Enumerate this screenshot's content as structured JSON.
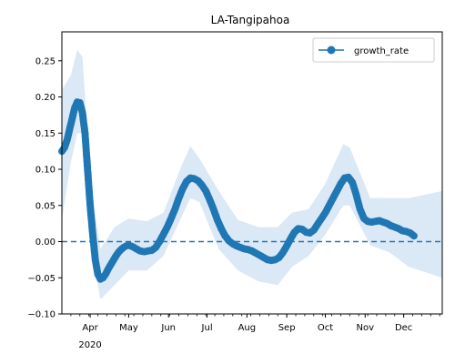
{
  "chart_data": {
    "type": "line",
    "title": "LA-Tangipahoa",
    "xlabel": "",
    "ylabel": "",
    "date_range": [
      "2020-03-10",
      "2020-12-31"
    ],
    "ylim": [
      -0.1,
      0.29
    ],
    "y_ticks": [
      -0.1,
      -0.05,
      0.0,
      0.05,
      0.1,
      0.15,
      0.2,
      0.25
    ],
    "y_tick_labels": [
      "−0.10",
      "−0.05",
      "0.00",
      "0.05",
      "0.10",
      "0.15",
      "0.20",
      "0.25"
    ],
    "x_ticks": [
      "2020-04-01",
      "2020-05-01",
      "2020-06-01",
      "2020-07-01",
      "2020-08-01",
      "2020-09-01",
      "2020-10-01",
      "2020-11-01",
      "2020-12-01"
    ],
    "x_tick_labels": [
      "Apr",
      "May",
      "Jun",
      "Jul",
      "Aug",
      "Sep",
      "Oct",
      "Nov",
      "Dec"
    ],
    "x_year_label": "2020",
    "reference_line": {
      "y": 0.0,
      "style": "dashed"
    },
    "legend": {
      "position": "top-right",
      "entries": [
        "growth_rate"
      ]
    },
    "colors": {
      "line": "#1f77b4",
      "band": "#dbe8f5",
      "reference": "#1f77b4"
    },
    "series": [
      {
        "name": "growth_rate",
        "points": [
          [
            "2020-03-10",
            0.125
          ],
          [
            "2020-03-12",
            0.13
          ],
          [
            "2020-03-14",
            0.14
          ],
          [
            "2020-03-16",
            0.155
          ],
          [
            "2020-03-18",
            0.17
          ],
          [
            "2020-03-20",
            0.185
          ],
          [
            "2020-03-22",
            0.193
          ],
          [
            "2020-03-24",
            0.192
          ],
          [
            "2020-03-26",
            0.178
          ],
          [
            "2020-03-28",
            0.15
          ],
          [
            "2020-03-30",
            0.1
          ],
          [
            "2020-04-01",
            0.05
          ],
          [
            "2020-04-03",
            0.01
          ],
          [
            "2020-04-05",
            -0.025
          ],
          [
            "2020-04-07",
            -0.045
          ],
          [
            "2020-04-09",
            -0.052
          ],
          [
            "2020-04-11",
            -0.05
          ],
          [
            "2020-04-13",
            -0.045
          ],
          [
            "2020-04-15",
            -0.038
          ],
          [
            "2020-04-17",
            -0.032
          ],
          [
            "2020-04-19",
            -0.026
          ],
          [
            "2020-04-21",
            -0.02
          ],
          [
            "2020-04-23",
            -0.015
          ],
          [
            "2020-04-25",
            -0.011
          ],
          [
            "2020-04-27",
            -0.008
          ],
          [
            "2020-04-29",
            -0.006
          ],
          [
            "2020-05-01",
            -0.005
          ],
          [
            "2020-05-04",
            -0.007
          ],
          [
            "2020-05-07",
            -0.01
          ],
          [
            "2020-05-10",
            -0.013
          ],
          [
            "2020-05-13",
            -0.014
          ],
          [
            "2020-05-16",
            -0.013
          ],
          [
            "2020-05-19",
            -0.012
          ],
          [
            "2020-05-22",
            -0.008
          ],
          [
            "2020-05-25",
            0.0
          ],
          [
            "2020-05-28",
            0.01
          ],
          [
            "2020-05-31",
            0.02
          ],
          [
            "2020-06-03",
            0.032
          ],
          [
            "2020-06-06",
            0.045
          ],
          [
            "2020-06-09",
            0.06
          ],
          [
            "2020-06-12",
            0.073
          ],
          [
            "2020-06-15",
            0.083
          ],
          [
            "2020-06-18",
            0.088
          ],
          [
            "2020-06-21",
            0.087
          ],
          [
            "2020-06-24",
            0.084
          ],
          [
            "2020-06-27",
            0.078
          ],
          [
            "2020-06-30",
            0.07
          ],
          [
            "2020-07-03",
            0.058
          ],
          [
            "2020-07-06",
            0.045
          ],
          [
            "2020-07-09",
            0.03
          ],
          [
            "2020-07-12",
            0.018
          ],
          [
            "2020-07-15",
            0.008
          ],
          [
            "2020-07-18",
            0.001
          ],
          [
            "2020-07-21",
            -0.003
          ],
          [
            "2020-07-24",
            -0.006
          ],
          [
            "2020-07-27",
            -0.008
          ],
          [
            "2020-07-30",
            -0.01
          ],
          [
            "2020-08-02",
            -0.011
          ],
          [
            "2020-08-05",
            -0.013
          ],
          [
            "2020-08-08",
            -0.016
          ],
          [
            "2020-08-11",
            -0.019
          ],
          [
            "2020-08-14",
            -0.022
          ],
          [
            "2020-08-17",
            -0.025
          ],
          [
            "2020-08-20",
            -0.026
          ],
          [
            "2020-08-23",
            -0.025
          ],
          [
            "2020-08-26",
            -0.022
          ],
          [
            "2020-08-29",
            -0.015
          ],
          [
            "2020-09-01",
            -0.006
          ],
          [
            "2020-09-04",
            0.004
          ],
          [
            "2020-09-07",
            0.013
          ],
          [
            "2020-09-10",
            0.018
          ],
          [
            "2020-09-13",
            0.017
          ],
          [
            "2020-09-16",
            0.013
          ],
          [
            "2020-09-19",
            0.012
          ],
          [
            "2020-09-22",
            0.016
          ],
          [
            "2020-09-25",
            0.024
          ],
          [
            "2020-09-28",
            0.032
          ],
          [
            "2020-10-01",
            0.04
          ],
          [
            "2020-10-04",
            0.05
          ],
          [
            "2020-10-07",
            0.06
          ],
          [
            "2020-10-10",
            0.07
          ],
          [
            "2020-10-13",
            0.08
          ],
          [
            "2020-10-16",
            0.088
          ],
          [
            "2020-10-19",
            0.089
          ],
          [
            "2020-10-22",
            0.082
          ],
          [
            "2020-10-25",
            0.065
          ],
          [
            "2020-10-28",
            0.045
          ],
          [
            "2020-10-31",
            0.032
          ],
          [
            "2020-11-03",
            0.028
          ],
          [
            "2020-11-06",
            0.027
          ],
          [
            "2020-11-09",
            0.028
          ],
          [
            "2020-11-12",
            0.029
          ],
          [
            "2020-11-15",
            0.027
          ],
          [
            "2020-11-18",
            0.025
          ],
          [
            "2020-11-21",
            0.022
          ],
          [
            "2020-11-24",
            0.02
          ],
          [
            "2020-11-27",
            0.018
          ],
          [
            "2020-11-30",
            0.015
          ],
          [
            "2020-12-03",
            0.014
          ],
          [
            "2020-12-06",
            0.012
          ],
          [
            "2020-12-09",
            0.008
          ]
        ],
        "band": {
          "points": [
            [
              "2020-03-10",
              0.03,
              0.21
            ],
            [
              "2020-03-17",
              0.11,
              0.23
            ],
            [
              "2020-03-22",
              0.15,
              0.265
            ],
            [
              "2020-03-26",
              0.15,
              0.255
            ],
            [
              "2020-03-30",
              0.08,
              0.15
            ],
            [
              "2020-04-03",
              -0.02,
              0.06
            ],
            [
              "2020-04-09",
              -0.08,
              -0.01
            ],
            [
              "2020-04-20",
              -0.06,
              0.02
            ],
            [
              "2020-05-01",
              -0.04,
              0.032
            ],
            [
              "2020-05-15",
              -0.04,
              0.028
            ],
            [
              "2020-05-28",
              -0.02,
              0.04
            ],
            [
              "2020-06-10",
              0.03,
              0.1
            ],
            [
              "2020-06-18",
              0.06,
              0.132
            ],
            [
              "2020-06-25",
              0.055,
              0.115
            ],
            [
              "2020-07-10",
              -0.01,
              0.07
            ],
            [
              "2020-07-25",
              -0.04,
              0.03
            ],
            [
              "2020-08-10",
              -0.055,
              0.02
            ],
            [
              "2020-08-25",
              -0.06,
              0.02
            ],
            [
              "2020-09-05",
              -0.035,
              0.04
            ],
            [
              "2020-09-18",
              -0.02,
              0.045
            ],
            [
              "2020-10-01",
              0.01,
              0.08
            ],
            [
              "2020-10-15",
              0.05,
              0.135
            ],
            [
              "2020-10-20",
              0.05,
              0.13
            ],
            [
              "2020-11-05",
              -0.005,
              0.06
            ],
            [
              "2020-11-20",
              -0.015,
              0.06
            ],
            [
              "2020-12-05",
              -0.035,
              0.06
            ],
            [
              "2020-12-31",
              -0.05,
              0.07
            ]
          ]
        }
      }
    ]
  }
}
